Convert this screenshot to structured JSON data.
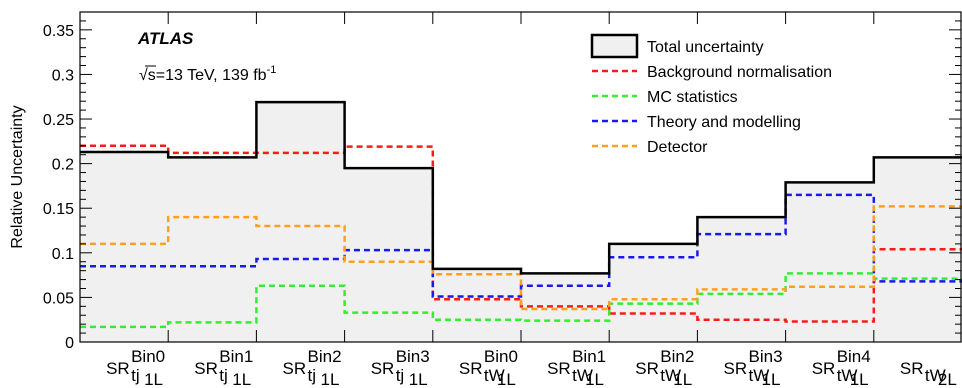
{
  "chart_data": {
    "type": "step",
    "ylabel": "Relative Uncertainty",
    "ylim": [
      0,
      0.37
    ],
    "yticks": [
      "0",
      "0.05",
      "0.1",
      "0.15",
      "0.2",
      "0.25",
      "0.3",
      "0.35"
    ],
    "ytick_values": [
      0,
      0.05,
      0.1,
      0.15,
      0.2,
      0.25,
      0.3,
      0.35
    ],
    "categories": [
      {
        "main": "SR",
        "sup": "Bin0",
        "sub": "tj",
        "subsub": "1L"
      },
      {
        "main": "SR",
        "sup": "Bin1",
        "sub": "tj",
        "subsub": "1L"
      },
      {
        "main": "SR",
        "sup": "Bin2",
        "sub": "tj",
        "subsub": "1L"
      },
      {
        "main": "SR",
        "sup": "Bin3",
        "sub": "tj",
        "subsub": "1L"
      },
      {
        "main": "SR",
        "sup": "Bin0",
        "sub": "tW",
        "subsub": "1L"
      },
      {
        "main": "SR",
        "sup": "Bin1",
        "sub": "tW",
        "subsub": "1L"
      },
      {
        "main": "SR",
        "sup": "Bin2",
        "sub": "tW",
        "subsub": "1L"
      },
      {
        "main": "SR",
        "sup": "Bin3",
        "sub": "tW",
        "subsub": "1L"
      },
      {
        "main": "SR",
        "sup": "Bin4",
        "sub": "tW",
        "subsub": "1L"
      },
      {
        "main": "SR",
        "sup": "",
        "sub": "tW",
        "subsub": "2L"
      }
    ],
    "series": [
      {
        "name": "Total uncertainty",
        "color": "#000000",
        "style": "solid-filled",
        "fill": "#f0f0f0",
        "values": [
          0.213,
          0.207,
          0.269,
          0.195,
          0.082,
          0.077,
          0.11,
          0.14,
          0.179,
          0.207
        ]
      },
      {
        "name": "Background normalisation",
        "color": "#ff1a1a",
        "style": "dashed",
        "values": [
          0.22,
          0.212,
          0.212,
          0.219,
          0.048,
          0.04,
          0.032,
          0.025,
          0.023,
          0.104
        ]
      },
      {
        "name": "MC statistics",
        "color": "#33ee33",
        "style": "dashed",
        "values": [
          0.017,
          0.022,
          0.063,
          0.033,
          0.025,
          0.024,
          0.043,
          0.054,
          0.077,
          0.071
        ]
      },
      {
        "name": "Theory and modelling",
        "color": "#1a1aee",
        "style": "dashed",
        "values": [
          0.085,
          0.085,
          0.093,
          0.103,
          0.051,
          0.063,
          0.095,
          0.121,
          0.165,
          0.068
        ]
      },
      {
        "name": "Detector",
        "color": "#ffa020",
        "style": "dashed",
        "values": [
          0.11,
          0.14,
          0.13,
          0.09,
          0.076,
          0.037,
          0.048,
          0.059,
          0.062,
          0.152
        ]
      }
    ],
    "annotations": {
      "experiment": "ATLAS",
      "sqrt": "√s=13 TeV, 139 fb",
      "sqrt_sup": "-1"
    },
    "legend_placement": "top-right",
    "grid": false
  }
}
